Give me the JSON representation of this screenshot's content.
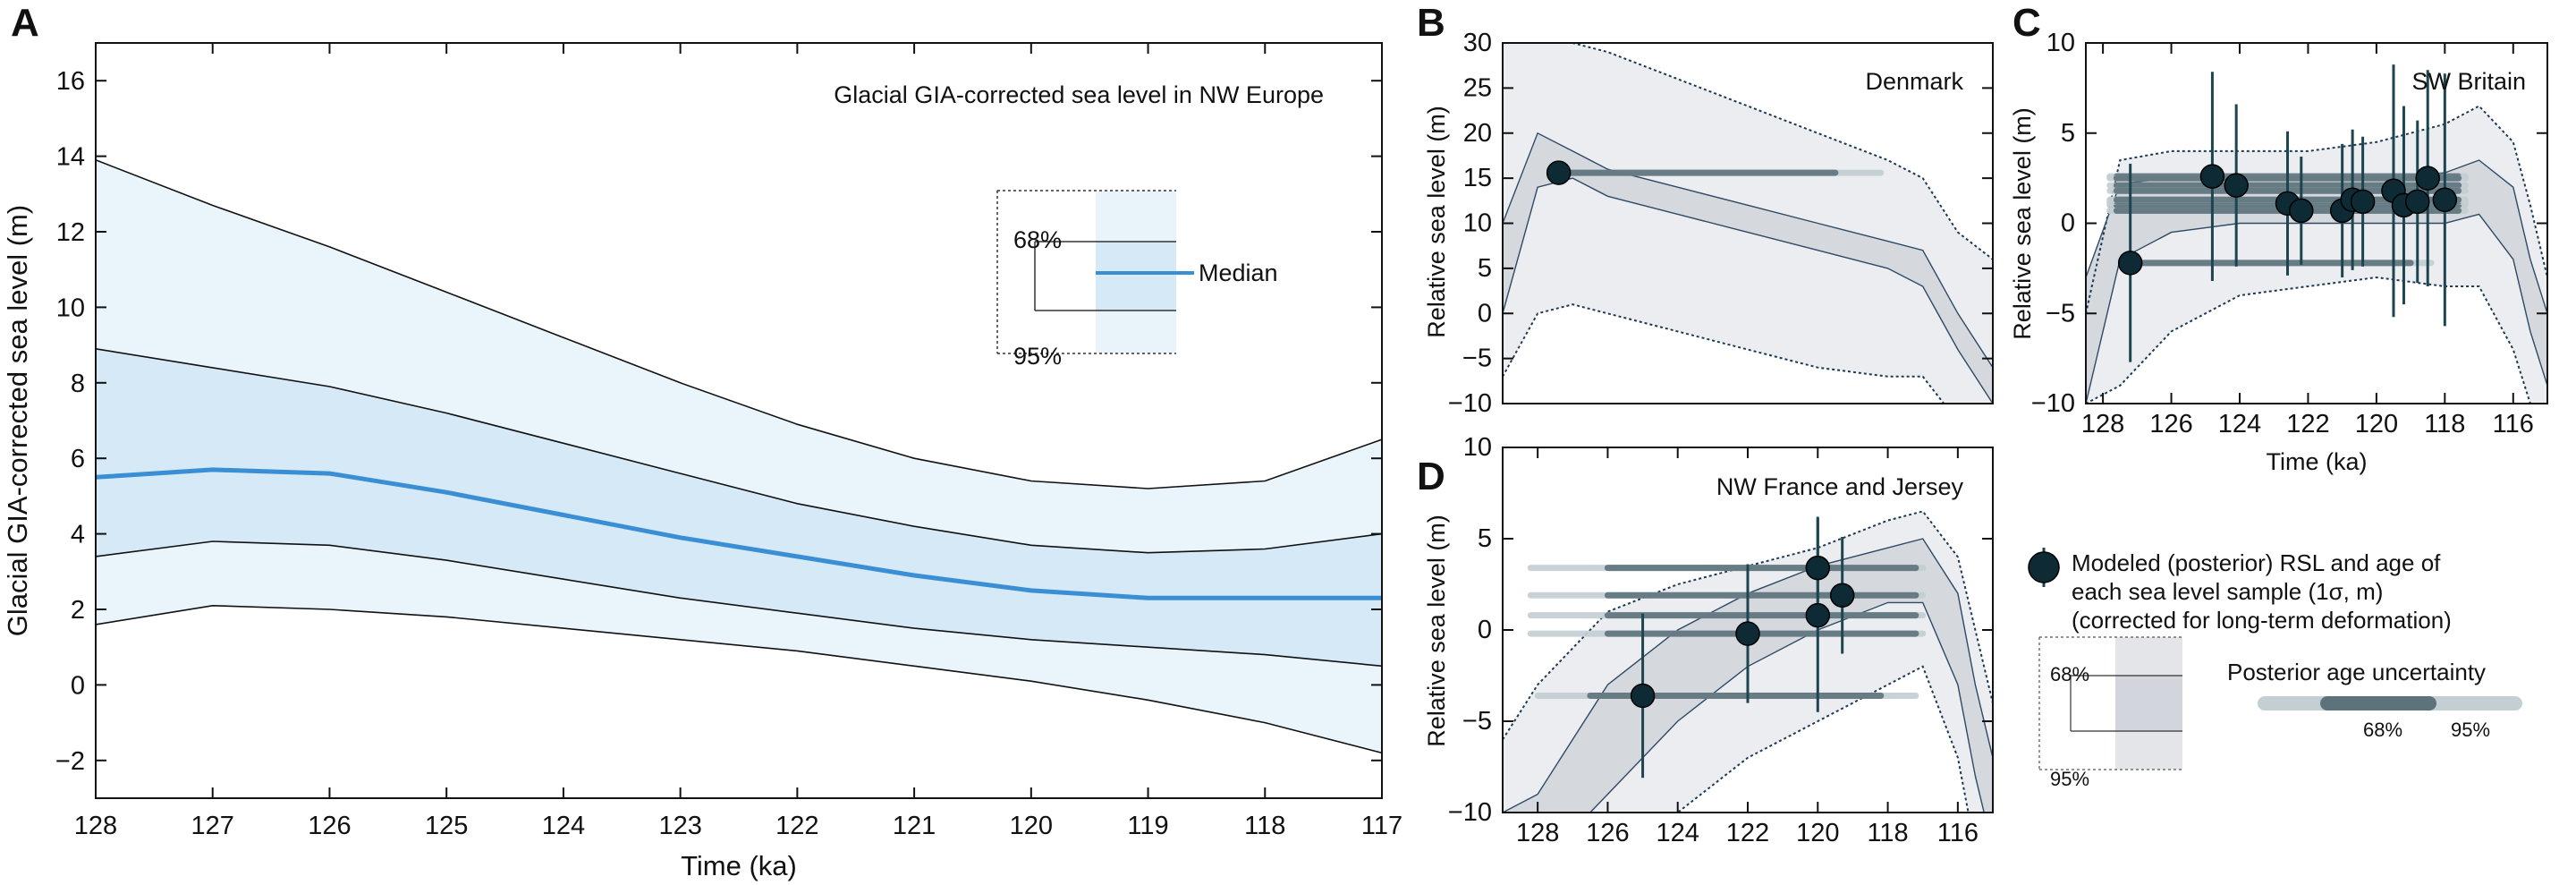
{
  "chart_data": [
    {
      "panel": "A",
      "type": "area",
      "title": "Glacial GIA-corrected sea level in NW Europe",
      "xlabel": "Time (ka)",
      "ylabel": "Glacial GIA-corrected sea level (m)",
      "xlim": [
        128,
        117
      ],
      "ylim": [
        -3,
        17
      ],
      "x_reversed": true,
      "xticks": [
        128,
        127,
        126,
        125,
        124,
        123,
        122,
        121,
        120,
        119,
        118,
        117
      ],
      "yticks": [
        -2,
        0,
        2,
        4,
        6,
        8,
        10,
        12,
        14,
        16
      ],
      "x": [
        128,
        127,
        126,
        125,
        124,
        123,
        122,
        121,
        120,
        119,
        118,
        117
      ],
      "series": [
        {
          "name": "Median",
          "values": [
            5.5,
            5.7,
            5.6,
            5.1,
            4.5,
            3.9,
            3.4,
            2.9,
            2.5,
            2.3,
            2.3,
            2.3
          ]
        },
        {
          "name": "68%",
          "lower": [
            3.4,
            3.8,
            3.7,
            3.3,
            2.8,
            2.3,
            1.9,
            1.5,
            1.2,
            1.0,
            0.8,
            0.5
          ],
          "upper": [
            8.9,
            8.4,
            7.9,
            7.2,
            6.4,
            5.6,
            4.8,
            4.2,
            3.7,
            3.5,
            3.6,
            4.0
          ]
        },
        {
          "name": "95%",
          "lower": [
            1.6,
            2.1,
            2.0,
            1.8,
            1.5,
            1.2,
            0.9,
            0.5,
            0.1,
            -0.4,
            -1.0,
            -1.8
          ],
          "upper": [
            13.9,
            12.7,
            11.6,
            10.4,
            9.2,
            8.0,
            6.9,
            6.0,
            5.4,
            5.2,
            5.4,
            6.5
          ]
        }
      ],
      "legend": {
        "labels": [
          "68%",
          "95%",
          "Median"
        ],
        "position": "right"
      }
    },
    {
      "panel": "B",
      "type": "scatter",
      "title": "Denmark",
      "xlabel": "",
      "ylabel": "Relative sea level (m)",
      "xlim": [
        129,
        115
      ],
      "ylim": [
        -10,
        30
      ],
      "x_reversed": true,
      "xticks": [],
      "yticks": [
        -10,
        -5,
        0,
        5,
        10,
        15,
        20,
        25,
        30
      ],
      "x": [
        129,
        128,
        127,
        126,
        124,
        122,
        120,
        118,
        117,
        116,
        115
      ],
      "band68": {
        "lower": [
          0,
          14,
          15,
          13,
          11,
          9,
          7,
          5,
          3,
          -4,
          -10
        ],
        "upper": [
          10,
          20,
          18,
          16,
          14,
          12,
          10,
          8,
          7,
          0,
          -6
        ]
      },
      "band95": {
        "lower": [
          -7,
          0,
          1,
          0,
          -2,
          -4,
          -6,
          -7,
          -7,
          -12,
          -18
        ],
        "upper": [
          30,
          30,
          30,
          29,
          26,
          23,
          20,
          17,
          15,
          9,
          6
        ]
      },
      "points": [
        {
          "age": 127.4,
          "rsl": 15.6,
          "rsl_err": 0.5,
          "age68": [
            127.4,
            119.5
          ],
          "age95": [
            127.4,
            118.2
          ]
        }
      ]
    },
    {
      "panel": "C",
      "type": "scatter",
      "title": "SW Britain",
      "xlabel": "Time (ka)",
      "ylabel": "Relative sea level (m)",
      "xlim": [
        128.5,
        115
      ],
      "ylim": [
        -10,
        10
      ],
      "x_reversed": true,
      "xticks": [
        128,
        126,
        124,
        122,
        120,
        118,
        116
      ],
      "yticks": [
        -10,
        -5,
        0,
        5,
        10
      ],
      "x": [
        128.5,
        127.5,
        126,
        124,
        122,
        120,
        118,
        117,
        116,
        115.5,
        115
      ],
      "band68": {
        "lower": [
          -10,
          -2,
          -0.5,
          0,
          0,
          0,
          0,
          0.5,
          -2,
          -6,
          -9
        ],
        "upper": [
          -3,
          2.2,
          2.5,
          2.5,
          2.5,
          2.5,
          2.8,
          3.5,
          2,
          -2,
          -5
        ]
      },
      "band95": {
        "lower": [
          -10,
          -9,
          -6,
          -4,
          -3.5,
          -3,
          -3.5,
          -3.5,
          -7,
          -10,
          -10
        ],
        "upper": [
          -5,
          3.5,
          4,
          4,
          4,
          4.5,
          5.5,
          6.5,
          4.5,
          1,
          -3
        ]
      },
      "points": [
        {
          "age": 127.2,
          "rsl": -2.2,
          "rsl_err": 5.5,
          "age68": [
            127.4,
            119.0
          ],
          "age95": [
            127.4,
            118.4
          ]
        },
        {
          "age": 124.8,
          "rsl": 2.6,
          "rsl_err": 5.8,
          "age68": [
            127.6,
            117.6
          ],
          "age95": [
            127.8,
            117.4
          ]
        },
        {
          "age": 124.1,
          "rsl": 2.1,
          "rsl_err": 4.5,
          "age68": [
            127.6,
            117.6
          ],
          "age95": [
            127.8,
            117.4
          ]
        },
        {
          "age": 122.6,
          "rsl": 1.1,
          "rsl_err": 4.0,
          "age68": [
            127.6,
            117.6
          ],
          "age95": [
            127.8,
            117.4
          ]
        },
        {
          "age": 122.2,
          "rsl": 0.7,
          "rsl_err": 3.0,
          "age68": [
            127.6,
            117.6
          ],
          "age95": [
            127.8,
            117.4
          ]
        },
        {
          "age": 121.0,
          "rsl": 0.7,
          "rsl_err": 3.7,
          "age68": [
            127.6,
            117.6
          ],
          "age95": [
            127.8,
            117.4
          ]
        },
        {
          "age": 120.7,
          "rsl": 1.3,
          "rsl_err": 3.9,
          "age68": [
            127.6,
            117.6
          ],
          "age95": [
            127.8,
            117.4
          ]
        },
        {
          "age": 120.4,
          "rsl": 1.2,
          "rsl_err": 3.6,
          "age68": [
            127.6,
            117.6
          ],
          "age95": [
            127.8,
            117.4
          ]
        },
        {
          "age": 119.5,
          "rsl": 1.8,
          "rsl_err": 7.0,
          "age68": [
            127.6,
            117.6
          ],
          "age95": [
            127.8,
            117.4
          ]
        },
        {
          "age": 119.2,
          "rsl": 1.0,
          "rsl_err": 5.5,
          "age68": [
            127.6,
            117.6
          ],
          "age95": [
            127.8,
            117.4
          ]
        },
        {
          "age": 118.8,
          "rsl": 1.2,
          "rsl_err": 4.5,
          "age68": [
            127.6,
            117.6
          ],
          "age95": [
            127.8,
            117.4
          ]
        },
        {
          "age": 118.5,
          "rsl": 2.5,
          "rsl_err": 6.0,
          "age68": [
            127.6,
            117.6
          ],
          "age95": [
            127.8,
            117.4
          ]
        },
        {
          "age": 118.0,
          "rsl": 1.3,
          "rsl_err": 7.0,
          "age68": [
            127.6,
            117.6
          ],
          "age95": [
            127.8,
            117.4
          ]
        }
      ]
    },
    {
      "panel": "D",
      "type": "scatter",
      "title": "NW France and Jersey",
      "xlabel": "",
      "ylabel": "Relative sea level (m)",
      "xlim": [
        129,
        115
      ],
      "ylim": [
        -10,
        10
      ],
      "x_reversed": true,
      "xticks": [
        128,
        126,
        124,
        122,
        120,
        118,
        116
      ],
      "yticks": [
        -10,
        -5,
        0,
        5,
        10
      ],
      "x": [
        129,
        128,
        126,
        124,
        122,
        120,
        118,
        117,
        116,
        115.5,
        115
      ],
      "band68": {
        "lower": [
          -14,
          -13,
          -9,
          -5,
          -2,
          0,
          1.5,
          1.5,
          -3,
          -8,
          -12
        ],
        "upper": [
          -10,
          -9,
          -3,
          0,
          2,
          3.5,
          4.5,
          5,
          2,
          -3,
          -7
        ]
      },
      "band95": {
        "lower": [
          -15,
          -15,
          -14,
          -10,
          -7,
          -5,
          -3,
          -2,
          -7,
          -12,
          -15
        ],
        "upper": [
          -6,
          -3,
          1,
          2.5,
          3.5,
          4.5,
          6,
          6.5,
          4,
          0,
          -4
        ]
      },
      "points": [
        {
          "age": 125.0,
          "rsl": -3.6,
          "rsl_err": 4.5,
          "age68": [
            126.5,
            118.2
          ],
          "age95": [
            128.0,
            117.2
          ]
        },
        {
          "age": 122.0,
          "rsl": -0.2,
          "rsl_err": 3.8,
          "age68": [
            126.0,
            117.2
          ],
          "age95": [
            128.2,
            117.0
          ]
        },
        {
          "age": 120.0,
          "rsl": 3.4,
          "rsl_err": 2.8,
          "age68": [
            126.0,
            117.2
          ],
          "age95": [
            128.2,
            117.0
          ]
        },
        {
          "age": 120.0,
          "rsl": 0.8,
          "rsl_err": 5.3,
          "age68": [
            126.0,
            117.2
          ],
          "age95": [
            128.2,
            117.0
          ]
        },
        {
          "age": 119.3,
          "rsl": 1.9,
          "rsl_err": 3.2,
          "age68": [
            126.0,
            117.2
          ],
          "age95": [
            128.2,
            117.0
          ]
        }
      ]
    }
  ],
  "legend_right": {
    "marker_text": [
      "Modeled (posterior) RSL and age of",
      "each sea level sample (1σ, m)",
      "(corrected for long-term deformation)"
    ],
    "band_68": "68%",
    "band_95": "95%",
    "age_title": "Posterior age uncertainty",
    "age_68": "68%",
    "age_95": "95%"
  },
  "colors": {
    "band95_A": "#eaf4fb",
    "band68_A": "#d6e9f6",
    "median": "#3a8fd4",
    "band95_gray": "#ecedf0",
    "band68_gray": "#d5d8dd",
    "age68": "#5d737c",
    "age95": "#c4cfd3",
    "marker": "#0d2a35",
    "errbar": "#1d4550"
  }
}
